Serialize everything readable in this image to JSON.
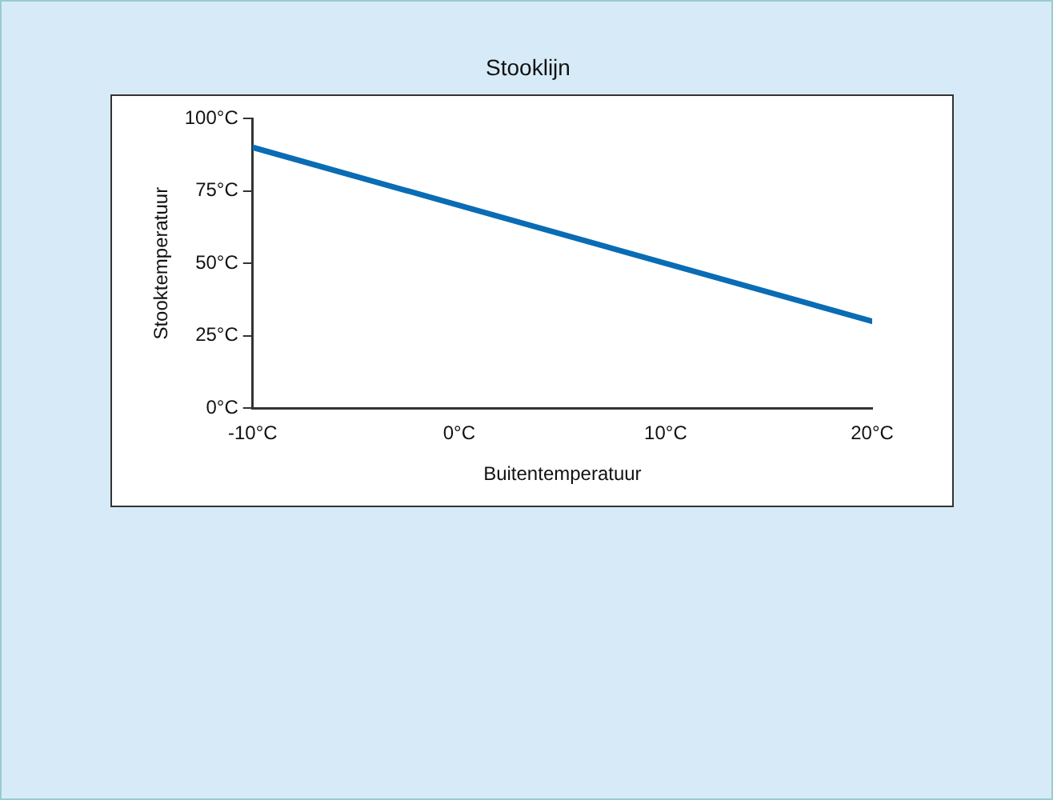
{
  "chart_data": {
    "type": "line",
    "title": "Stooklijn",
    "xlabel": "Buitentemperatuur",
    "ylabel": "Stooktemperatuur",
    "x": [
      -10,
      20
    ],
    "series": [
      {
        "color": "#0a6cb4",
        "values": [
          90,
          30
        ]
      }
    ],
    "xlim": [
      -10,
      20
    ],
    "xticks": [
      {
        "value": -10,
        "label": "-10°C"
      },
      {
        "value": 0,
        "label": "0°C"
      },
      {
        "value": 10,
        "label": "10°C"
      },
      {
        "value": 20,
        "label": "20°C"
      }
    ],
    "ylim": [
      0,
      100
    ],
    "yticks": [
      {
        "value": 0,
        "label": "0°C"
      },
      {
        "value": 25,
        "label": "25°C"
      },
      {
        "value": 50,
        "label": "50°C"
      },
      {
        "value": 75,
        "label": "75°C"
      },
      {
        "value": 100,
        "label": "100°C"
      }
    ],
    "grid": false,
    "legend": false,
    "marker": "none",
    "line_style": "solid"
  }
}
